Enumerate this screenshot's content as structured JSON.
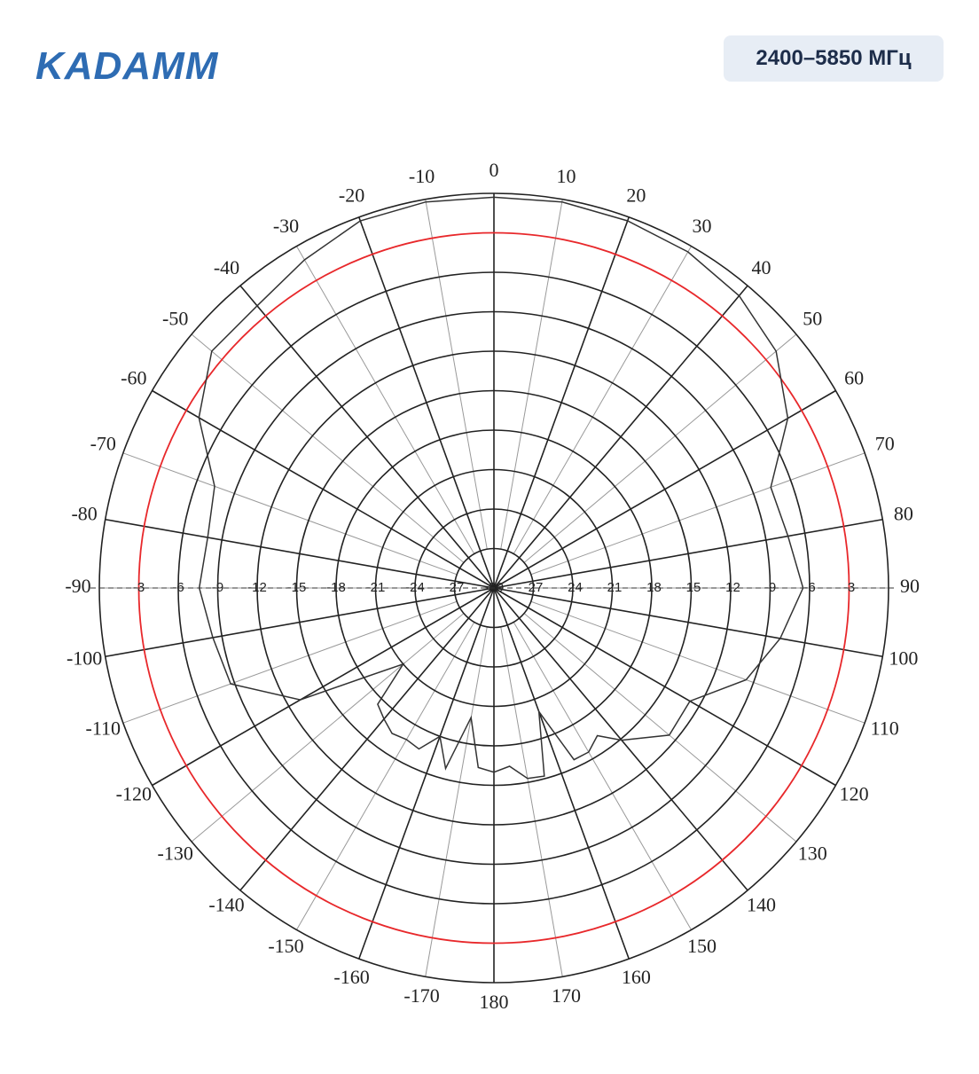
{
  "header": {
    "brand": "KADAMM",
    "badge": "2400–5850 МГц"
  },
  "chart_data": {
    "type": "polar",
    "rlim": [
      -30,
      0
    ],
    "rticks": [
      -30,
      -27,
      -24,
      -21,
      -18,
      -15,
      -12,
      -9,
      -6,
      -3
    ],
    "thetaticks": [
      -170,
      -160,
      -150,
      -140,
      -130,
      -120,
      -110,
      -100,
      -90,
      -80,
      -70,
      -60,
      -50,
      -40,
      -30,
      -20,
      -10,
      0,
      10,
      20,
      30,
      40,
      50,
      60,
      70,
      80,
      90,
      100,
      110,
      120,
      130,
      140,
      150,
      160,
      170,
      180
    ],
    "reference_ring": -3,
    "reference_color": "#e8282b",
    "color": "#333333",
    "theta": [
      -175,
      -170,
      -165,
      -160,
      -155,
      -150,
      -145,
      -140,
      -135,
      -130,
      -125,
      -120,
      -110,
      -100,
      -90,
      -80,
      -70,
      -60,
      -50,
      -40,
      -30,
      -20,
      -10,
      0,
      10,
      20,
      30,
      40,
      50,
      60,
      70,
      80,
      90,
      100,
      110,
      120,
      130,
      140,
      145,
      150,
      155,
      160,
      165,
      170,
      175,
      180
    ],
    "values": [
      -16.3,
      -20,
      -15.8,
      -18,
      -16.5,
      -16.7,
      -16.5,
      -17,
      -17.5,
      -21,
      -18.3,
      -13,
      -8.7,
      -8.3,
      -7.6,
      -7.9,
      -7.4,
      -4.1,
      -2,
      -2,
      -1.2,
      -0.3,
      -0.2,
      -0.3,
      -0.2,
      -0.3,
      -0.5,
      -1,
      -2,
      -4.2,
      -7.6,
      -7.3,
      -6.5,
      -7.9,
      -9.6,
      -12.8,
      -12.6,
      -14.9,
      -16.3,
      -15.6,
      -15.6,
      -20,
      -15.2,
      -15.3,
      -16.4,
      -16
    ]
  }
}
